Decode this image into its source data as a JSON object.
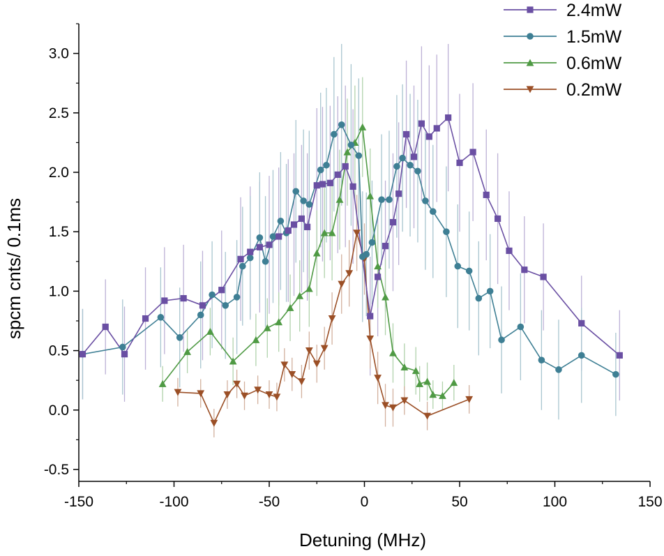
{
  "chart_data": {
    "type": "line",
    "xlabel": "Detuning (MHz)",
    "ylabel": "spcm cnts/ 0.1ms",
    "xlim": [
      -150,
      150
    ],
    "ylim": [
      -0.6,
      3.25
    ],
    "xticks": [
      -150,
      -100,
      -50,
      0,
      50,
      100,
      150
    ],
    "yticks": [
      -0.5,
      0.0,
      0.5,
      1.0,
      1.5,
      2.0,
      2.5,
      3.0
    ],
    "xtick_labels": [
      "-150",
      "-100",
      "-50",
      "0",
      "50",
      "100",
      "150"
    ],
    "ytick_labels": [
      "-0.5",
      "0.0",
      "0.5",
      "1.0",
      "1.5",
      "2.0",
      "2.5",
      "3.0"
    ],
    "grid": false,
    "legend_position": "top-right",
    "error_bars": true,
    "series": [
      {
        "name": "2.4mW",
        "color": "#6a4fa3",
        "marker": "square",
        "points": [
          [
            -148,
            0.47,
            0.38
          ],
          [
            -136,
            0.7,
            0.4
          ],
          [
            -126,
            0.47,
            0.4
          ],
          [
            -115,
            0.77,
            0.43
          ],
          [
            -105,
            0.92,
            0.45
          ],
          [
            -95,
            0.94,
            0.45
          ],
          [
            -85,
            0.88,
            0.46
          ],
          [
            -75,
            1.01,
            0.5
          ],
          [
            -65,
            1.27,
            0.52
          ],
          [
            -60,
            1.33,
            0.55
          ],
          [
            -55,
            1.37,
            0.55
          ],
          [
            -50,
            1.39,
            0.58
          ],
          [
            -45,
            1.46,
            0.58
          ],
          [
            -40,
            1.51,
            0.6
          ],
          [
            -37,
            1.56,
            0.6
          ],
          [
            -33,
            1.61,
            0.62
          ],
          [
            -30,
            1.54,
            0.62
          ],
          [
            -25,
            1.89,
            0.65
          ],
          [
            -22,
            1.9,
            0.65
          ],
          [
            -18,
            1.91,
            0.65
          ],
          [
            -14,
            1.98,
            0.66
          ],
          [
            -10,
            2.05,
            0.68
          ],
          [
            -6,
            1.88,
            0.65
          ],
          [
            3,
            0.79,
            0.5
          ],
          [
            7,
            1.12,
            0.5
          ],
          [
            11,
            1.38,
            0.55
          ],
          [
            15,
            1.58,
            0.58
          ],
          [
            18,
            1.82,
            0.6
          ],
          [
            22,
            2.32,
            0.62
          ],
          [
            26,
            2.13,
            0.6
          ],
          [
            30,
            2.41,
            0.65
          ],
          [
            34,
            2.3,
            0.6
          ],
          [
            38,
            2.37,
            0.62
          ],
          [
            44,
            2.46,
            0.62
          ],
          [
            50,
            2.08,
            0.58
          ],
          [
            57,
            2.17,
            0.58
          ],
          [
            64,
            1.81,
            0.55
          ],
          [
            70,
            1.61,
            0.55
          ],
          [
            76,
            1.34,
            0.5
          ],
          [
            84,
            1.18,
            0.45
          ],
          [
            94,
            1.12,
            0.45
          ],
          [
            114,
            0.73,
            0.4
          ],
          [
            134,
            0.46,
            0.38
          ]
        ]
      },
      {
        "name": "1.5mW",
        "color": "#3e7f94",
        "marker": "circle",
        "points": [
          [
            -148,
            0.47,
            0.38
          ],
          [
            -127,
            0.53,
            0.4
          ],
          [
            -107,
            0.78,
            0.42
          ],
          [
            -97,
            0.61,
            0.42
          ],
          [
            -86,
            0.8,
            0.45
          ],
          [
            -80,
            0.97,
            0.45
          ],
          [
            -73,
            0.88,
            0.45
          ],
          [
            -67,
            0.95,
            0.48
          ],
          [
            -64,
            1.21,
            0.5
          ],
          [
            -60,
            1.28,
            0.52
          ],
          [
            -55,
            1.45,
            0.55
          ],
          [
            -52,
            1.25,
            0.55
          ],
          [
            -48,
            1.46,
            0.56
          ],
          [
            -44,
            1.59,
            0.58
          ],
          [
            -41,
            1.49,
            0.58
          ],
          [
            -36,
            1.84,
            0.6
          ],
          [
            -32,
            1.76,
            0.6
          ],
          [
            -29,
            1.73,
            0.62
          ],
          [
            -23,
            2.02,
            0.65
          ],
          [
            -20,
            2.06,
            0.65
          ],
          [
            -16,
            2.32,
            0.65
          ],
          [
            -12,
            2.4,
            0.68
          ],
          [
            -7,
            2.23,
            0.68
          ],
          [
            -3,
            2.14,
            0.65
          ],
          [
            -1,
            1.29,
            0.55
          ],
          [
            1,
            1.31,
            0.52
          ],
          [
            4,
            1.41,
            0.52
          ],
          [
            9,
            1.77,
            0.55
          ],
          [
            13,
            1.77,
            0.58
          ],
          [
            17,
            2.05,
            0.6
          ],
          [
            20,
            2.12,
            0.62
          ],
          [
            24,
            2.06,
            0.6
          ],
          [
            28,
            2.01,
            0.6
          ],
          [
            32,
            1.76,
            0.58
          ],
          [
            36,
            1.67,
            0.56
          ],
          [
            43,
            1.5,
            0.55
          ],
          [
            49,
            1.21,
            0.52
          ],
          [
            55,
            1.17,
            0.5
          ],
          [
            60,
            0.94,
            0.48
          ],
          [
            66,
            1.0,
            0.48
          ],
          [
            72,
            0.59,
            0.45
          ],
          [
            82,
            0.7,
            0.45
          ],
          [
            93,
            0.42,
            0.42
          ],
          [
            102,
            0.34,
            0.42
          ],
          [
            114,
            0.46,
            0.4
          ],
          [
            132,
            0.3,
            0.35
          ]
        ]
      },
      {
        "name": "0.6mW",
        "color": "#4f9a44",
        "marker": "triangle-up",
        "points": [
          [
            -106,
            0.22,
            0.15
          ],
          [
            -93,
            0.49,
            0.18
          ],
          [
            -81,
            0.66,
            0.2
          ],
          [
            -69,
            0.41,
            0.2
          ],
          [
            -57,
            0.59,
            0.22
          ],
          [
            -51,
            0.69,
            0.25
          ],
          [
            -45,
            0.74,
            0.25
          ],
          [
            -39,
            0.86,
            0.28
          ],
          [
            -34,
            0.96,
            0.3
          ],
          [
            -29,
            1.02,
            0.32
          ],
          [
            -25,
            1.32,
            0.36
          ],
          [
            -21,
            1.49,
            0.38
          ],
          [
            -17,
            1.49,
            0.4
          ],
          [
            -13,
            1.77,
            0.42
          ],
          [
            -9,
            2.17,
            0.45
          ],
          [
            -5,
            2.25,
            0.48
          ],
          [
            -1,
            2.38,
            0.42
          ],
          [
            3,
            1.8,
            0.4
          ],
          [
            7,
            1.21,
            0.35
          ],
          [
            11,
            0.95,
            0.32
          ],
          [
            15,
            0.48,
            0.25
          ],
          [
            21,
            0.36,
            0.2
          ],
          [
            27,
            0.33,
            0.2
          ],
          [
            29,
            0.22,
            0.15
          ],
          [
            33,
            0.24,
            0.16
          ],
          [
            36,
            0.13,
            0.12
          ],
          [
            41,
            0.12,
            0.12
          ],
          [
            47,
            0.23,
            0.15
          ]
        ]
      },
      {
        "name": "0.2mW",
        "color": "#9b4f26",
        "marker": "triangle-down",
        "points": [
          [
            -98,
            0.15,
            0.12
          ],
          [
            -86,
            0.14,
            0.12
          ],
          [
            -79,
            -0.11,
            0.12
          ],
          [
            -72,
            0.13,
            0.12
          ],
          [
            -67,
            0.22,
            0.12
          ],
          [
            -63,
            0.12,
            0.12
          ],
          [
            -56,
            0.17,
            0.12
          ],
          [
            -50,
            0.13,
            0.12
          ],
          [
            -46,
            0.11,
            0.12
          ],
          [
            -42,
            0.38,
            0.14
          ],
          [
            -38,
            0.3,
            0.14
          ],
          [
            -33,
            0.24,
            0.14
          ],
          [
            -29,
            0.5,
            0.16
          ],
          [
            -25,
            0.39,
            0.16
          ],
          [
            -21,
            0.52,
            0.18
          ],
          [
            -17,
            0.77,
            0.22
          ],
          [
            -12,
            1.06,
            0.25
          ],
          [
            -8,
            1.15,
            0.28
          ],
          [
            -4,
            1.49,
            0.32
          ],
          [
            0,
            1.27,
            0.3
          ],
          [
            3,
            0.6,
            0.25
          ],
          [
            7,
            0.27,
            0.22
          ],
          [
            11,
            0.04,
            0.18
          ],
          [
            15,
            0.02,
            0.16
          ],
          [
            21,
            0.08,
            0.12
          ],
          [
            33,
            -0.05,
            0.12
          ],
          [
            55,
            0.09,
            0.12
          ]
        ]
      }
    ]
  }
}
